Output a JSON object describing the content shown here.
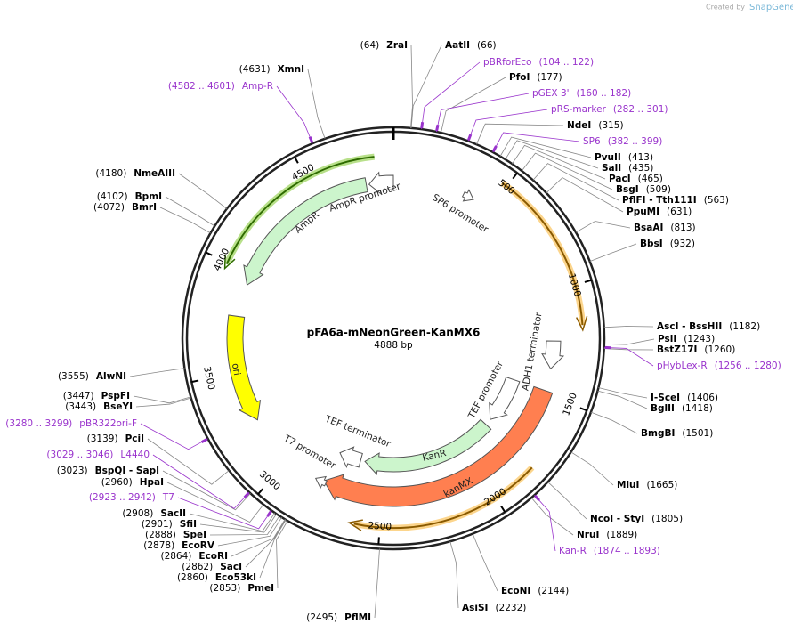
{
  "header": {
    "created_by": "Created by",
    "brand": "SnapGene"
  },
  "map": {
    "title": "pFA6a-mNeonGreen-KanMX6",
    "size": "4888 bp",
    "ring_ticks": [
      500,
      1000,
      1500,
      2000,
      2500,
      3000,
      3500,
      4000,
      4500
    ],
    "enzymes": [
      {
        "name": "AatII",
        "position": "(66)"
      },
      {
        "name": "PfoI",
        "position": "(177)"
      },
      {
        "name": "NdeI",
        "position": "(315)"
      },
      {
        "name": "PvuII",
        "position": "(413)"
      },
      {
        "name": "SalI",
        "position": "(435)"
      },
      {
        "name": "PacI",
        "position": "(465)"
      },
      {
        "name": "BsgI",
        "position": "(509)"
      },
      {
        "name": "PflFI - Tth111I",
        "position": "(563)"
      },
      {
        "name": "PpuMI",
        "position": "(631)"
      },
      {
        "name": "BsaAI",
        "position": "(813)"
      },
      {
        "name": "BbsI",
        "position": "(932)"
      },
      {
        "name": "AscI - BssHII",
        "position": "(1182)"
      },
      {
        "name": "PsiI",
        "position": "(1243)"
      },
      {
        "name": "BstZ17I",
        "position": "(1260)"
      },
      {
        "name": "I-SceI",
        "position": "(1406)"
      },
      {
        "name": "BglII",
        "position": "(1418)"
      },
      {
        "name": "BmgBI",
        "position": "(1501)"
      },
      {
        "name": "MluI",
        "position": "(1665)"
      },
      {
        "name": "NcoI - StyI",
        "position": "(1805)"
      },
      {
        "name": "NruI",
        "position": "(1889)"
      },
      {
        "name": "EcoNI",
        "position": "(2144)"
      },
      {
        "name": "AsiSI",
        "position": "(2232)"
      },
      {
        "name": "ZraI",
        "position": "(64)"
      },
      {
        "name": "XmnI",
        "position": "(4631)"
      },
      {
        "name": "NmeAIII",
        "position": "(4180)"
      },
      {
        "name": "BpmI",
        "position": "(4102)"
      },
      {
        "name": "BmrI",
        "position": "(4072)"
      },
      {
        "name": "AlwNI",
        "position": "(3555)"
      },
      {
        "name": "PspFI",
        "position": "(3447)"
      },
      {
        "name": "BseYI",
        "position": "(3443)"
      },
      {
        "name": "PciI",
        "position": "(3139)"
      },
      {
        "name": "BspQI - SapI",
        "position": "(3023)"
      },
      {
        "name": "HpaI",
        "position": "(2960)"
      },
      {
        "name": "SacII",
        "position": "(2908)"
      },
      {
        "name": "SfiI",
        "position": "(2901)"
      },
      {
        "name": "SpeI",
        "position": "(2888)"
      },
      {
        "name": "EcoRV",
        "position": "(2878)"
      },
      {
        "name": "EcoRI",
        "position": "(2864)"
      },
      {
        "name": "SacI",
        "position": "(2862)"
      },
      {
        "name": "Eco53kI",
        "position": "(2860)"
      },
      {
        "name": "PmeI",
        "position": "(2853)"
      },
      {
        "name": "PflMI",
        "position": "(2495)"
      }
    ],
    "primers": [
      {
        "name": "pBRforEco",
        "position": "(104 .. 122)"
      },
      {
        "name": "pGEX 3'",
        "position": "(160 .. 182)"
      },
      {
        "name": "pRS-marker",
        "position": "(282 .. 301)"
      },
      {
        "name": "SP6",
        "position": "(382 .. 399)"
      },
      {
        "name": "pHybLex-R",
        "position": "(1256 .. 1280)"
      },
      {
        "name": "Kan-R",
        "position": "(1874 .. 1893)"
      },
      {
        "name": "Amp-R",
        "position": "(4582 .. 4601)"
      },
      {
        "name": "pBR322ori-F",
        "position": "(3280 .. 3299)"
      },
      {
        "name": "L4440",
        "position": "(3029 .. 3046)"
      },
      {
        "name": "T7",
        "position": "(2923 .. 2942)"
      }
    ],
    "features": [
      {
        "name": "AmpR promoter",
        "color": "#ffffff"
      },
      {
        "name": "AmpR",
        "color": "#ccf5cc"
      },
      {
        "name": "ori",
        "color": "#ffff00"
      },
      {
        "name": "KanR",
        "color": "#ccf5cc"
      },
      {
        "name": "kanMX",
        "color": "#ff7f50"
      },
      {
        "name": "TEF promoter",
        "color": "#ffffff"
      },
      {
        "name": "TEF terminator",
        "color": "#ffffff"
      },
      {
        "name": "ADH1 terminator",
        "color": "#ffffff"
      },
      {
        "name": "T7 promoter",
        "color": "#ffffff"
      },
      {
        "name": "SP6 promoter",
        "color": "#ffffff"
      }
    ]
  }
}
